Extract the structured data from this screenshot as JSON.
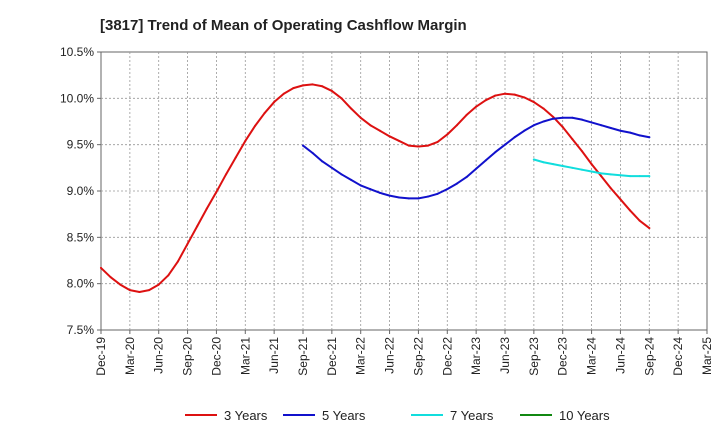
{
  "chart_data": {
    "type": "line",
    "title": "[3817]  Trend of Mean of Operating Cashflow Margin",
    "xlabel": "",
    "ylabel": "",
    "x_ticks": [
      "Dec-19",
      "Mar-20",
      "Jun-20",
      "Sep-20",
      "Dec-20",
      "Mar-21",
      "Jun-21",
      "Sep-21",
      "Dec-21",
      "Mar-22",
      "Jun-22",
      "Sep-22",
      "Dec-22",
      "Mar-23",
      "Jun-23",
      "Sep-23",
      "Dec-23",
      "Mar-24",
      "Jun-24",
      "Sep-24",
      "Dec-24",
      "Mar-25"
    ],
    "y_ticks": [
      "7.5%",
      "8.0%",
      "8.5%",
      "9.0%",
      "9.5%",
      "10.0%",
      "10.5%"
    ],
    "ylim": [
      7.5,
      10.5
    ],
    "grid": true,
    "legend_position": "bottom",
    "series": [
      {
        "name": "3 Years",
        "color": "#dd1111",
        "x": [
          "Dec-19",
          "Jan-20",
          "Feb-20",
          "Mar-20",
          "Apr-20",
          "May-20",
          "Jun-20",
          "Jul-20",
          "Aug-20",
          "Sep-20",
          "Oct-20",
          "Nov-20",
          "Dec-20",
          "Jan-21",
          "Feb-21",
          "Mar-21",
          "Apr-21",
          "May-21",
          "Jun-21",
          "Jul-21",
          "Aug-21",
          "Sep-21",
          "Oct-21",
          "Nov-21",
          "Dec-21",
          "Jan-22",
          "Feb-22",
          "Mar-22",
          "Apr-22",
          "May-22",
          "Jun-22",
          "Jul-22",
          "Aug-22",
          "Sep-22",
          "Oct-22",
          "Nov-22",
          "Dec-22",
          "Jan-23",
          "Feb-23",
          "Mar-23",
          "Apr-23",
          "May-23",
          "Jun-23",
          "Jul-23",
          "Aug-23",
          "Sep-23",
          "Oct-23",
          "Nov-23",
          "Dec-23",
          "Jan-24",
          "Feb-24",
          "Mar-24",
          "Apr-24",
          "May-24",
          "Jun-24",
          "Jul-24",
          "Aug-24",
          "Sep-24"
        ],
        "values": [
          8.17,
          8.07,
          7.99,
          7.93,
          7.91,
          7.93,
          7.99,
          8.09,
          8.24,
          8.43,
          8.62,
          8.81,
          8.99,
          9.18,
          9.36,
          9.54,
          9.7,
          9.84,
          9.96,
          10.05,
          10.11,
          10.14,
          10.15,
          10.13,
          10.08,
          10.0,
          9.89,
          9.79,
          9.71,
          9.65,
          9.59,
          9.54,
          9.49,
          9.48,
          9.49,
          9.53,
          9.61,
          9.71,
          9.82,
          9.91,
          9.98,
          10.03,
          10.05,
          10.04,
          10.01,
          9.96,
          9.89,
          9.8,
          9.69,
          9.56,
          9.43,
          9.29,
          9.16,
          9.03,
          8.91,
          8.79,
          8.68,
          8.6
        ]
      },
      {
        "name": "5 Years",
        "color": "#1111cc",
        "x": [
          "Sep-21",
          "Oct-21",
          "Nov-21",
          "Dec-21",
          "Jan-22",
          "Feb-22",
          "Mar-22",
          "Apr-22",
          "May-22",
          "Jun-22",
          "Jul-22",
          "Aug-22",
          "Sep-22",
          "Oct-22",
          "Nov-22",
          "Dec-22",
          "Jan-23",
          "Feb-23",
          "Mar-23",
          "Apr-23",
          "May-23",
          "Jun-23",
          "Jul-23",
          "Aug-23",
          "Sep-23",
          "Oct-23",
          "Nov-23",
          "Dec-23",
          "Jan-24",
          "Feb-24",
          "Mar-24",
          "Apr-24",
          "May-24",
          "Jun-24",
          "Jul-24",
          "Aug-24",
          "Sep-24"
        ],
        "values": [
          9.49,
          9.41,
          9.32,
          9.25,
          9.18,
          9.12,
          9.06,
          9.02,
          8.98,
          8.95,
          8.93,
          8.92,
          8.92,
          8.94,
          8.97,
          9.02,
          9.08,
          9.15,
          9.24,
          9.33,
          9.42,
          9.5,
          9.58,
          9.65,
          9.71,
          9.75,
          9.78,
          9.79,
          9.79,
          9.77,
          9.74,
          9.71,
          9.68,
          9.65,
          9.63,
          9.6,
          9.58
        ]
      },
      {
        "name": "7 Years",
        "color": "#11dddd",
        "x": [
          "Sep-23",
          "Oct-23",
          "Nov-23",
          "Dec-23",
          "Jan-24",
          "Feb-24",
          "Mar-24",
          "Apr-24",
          "May-24",
          "Jun-24",
          "Jul-24",
          "Aug-24",
          "Sep-24"
        ],
        "values": [
          9.34,
          9.31,
          9.29,
          9.27,
          9.25,
          9.23,
          9.21,
          9.19,
          9.18,
          9.17,
          9.16,
          9.16,
          9.16
        ]
      },
      {
        "name": "10 Years",
        "color": "#118811",
        "x": [],
        "values": []
      }
    ]
  }
}
